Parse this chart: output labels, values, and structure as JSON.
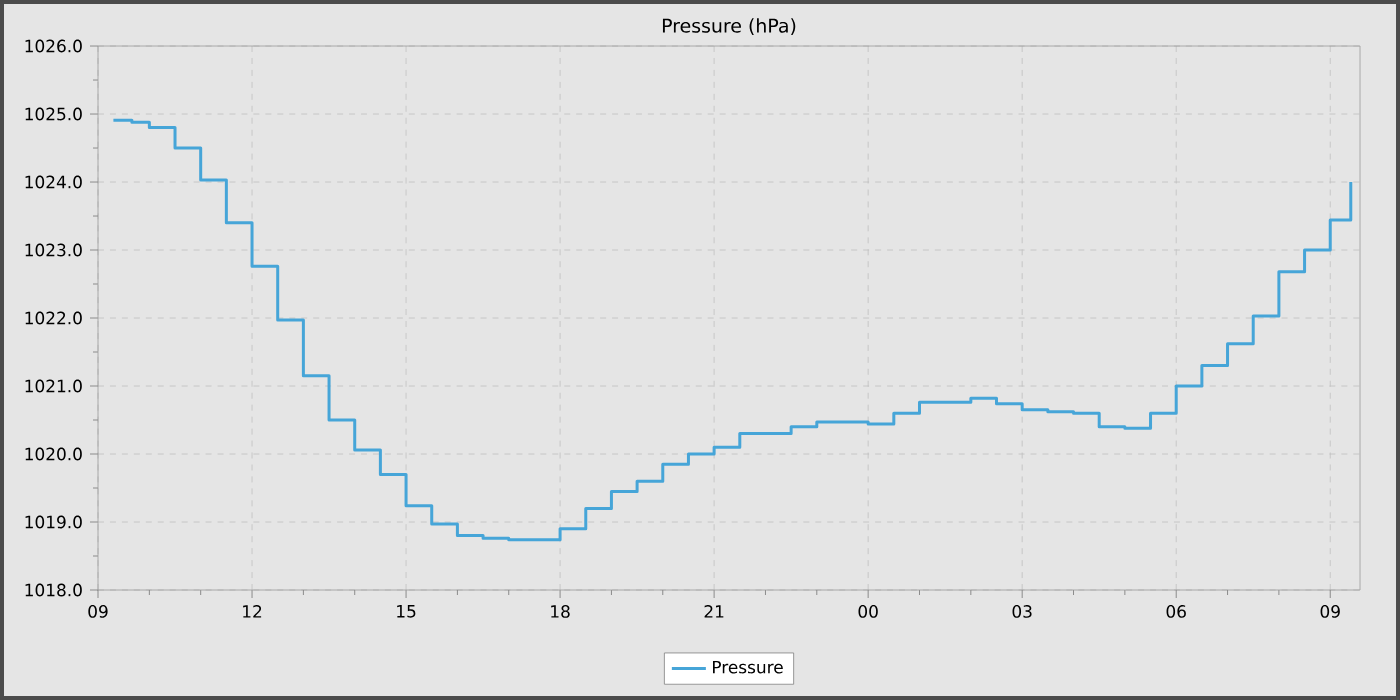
{
  "chart_data": {
    "type": "step",
    "title": "Pressure (hPa)",
    "x": [
      9.3,
      9.66,
      10.0,
      10.5,
      11.0,
      11.5,
      12.0,
      12.5,
      13.0,
      13.5,
      14.0,
      14.5,
      15.0,
      15.5,
      16.0,
      16.5,
      17.0,
      17.5,
      18.0,
      18.5,
      19.0,
      19.5,
      20.0,
      20.5,
      21.0,
      21.5,
      22.0,
      22.5,
      23.0,
      23.5,
      24.0,
      24.5,
      25.0,
      25.5,
      26.0,
      26.5,
      27.0,
      27.5,
      28.0,
      28.5,
      29.0,
      29.5,
      30.0,
      30.5,
      31.0,
      31.5,
      32.0,
      32.5,
      33.0,
      33.4
    ],
    "series": [
      {
        "name": "Pressure",
        "color": "#46a5d8",
        "values": [
          1024.91,
          1024.88,
          1024.8,
          1024.5,
          1024.03,
          1023.4,
          1022.76,
          1021.97,
          1021.15,
          1020.5,
          1020.06,
          1019.7,
          1019.24,
          1018.97,
          1018.8,
          1018.76,
          1018.74,
          1018.74,
          1018.9,
          1019.2,
          1019.45,
          1019.6,
          1019.85,
          1020.0,
          1020.1,
          1020.3,
          1020.3,
          1020.4,
          1020.47,
          1020.47,
          1020.44,
          1020.6,
          1020.76,
          1020.76,
          1020.82,
          1020.74,
          1020.65,
          1020.62,
          1020.6,
          1020.4,
          1020.38,
          1020.6,
          1021.0,
          1021.3,
          1021.62,
          1022.03,
          1022.68,
          1023.0,
          1023.44,
          1024.0
        ]
      }
    ],
    "xlim": [
      9,
      33.58
    ],
    "ylim": [
      1018,
      1026
    ],
    "xticks": [
      {
        "value": 9,
        "label": "09"
      },
      {
        "value": 12,
        "label": "12"
      },
      {
        "value": 15,
        "label": "15"
      },
      {
        "value": 18,
        "label": "18"
      },
      {
        "value": 21,
        "label": "21"
      },
      {
        "value": 24,
        "label": "00"
      },
      {
        "value": 27,
        "label": "03"
      },
      {
        "value": 30,
        "label": "06"
      },
      {
        "value": 33,
        "label": "09"
      }
    ],
    "yticks": [
      {
        "value": 1018,
        "label": "1018.0"
      },
      {
        "value": 1019,
        "label": "1019.0"
      },
      {
        "value": 1020,
        "label": "1020.0"
      },
      {
        "value": 1021,
        "label": "1021.0"
      },
      {
        "value": 1022,
        "label": "1022.0"
      },
      {
        "value": 1023,
        "label": "1023.0"
      },
      {
        "value": 1024,
        "label": "1024.0"
      },
      {
        "value": 1025,
        "label": "1025.0"
      },
      {
        "value": 1026,
        "label": "1026.0"
      }
    ],
    "grid": true,
    "legend": "bottom",
    "marker": "none",
    "line_style": "solid"
  }
}
